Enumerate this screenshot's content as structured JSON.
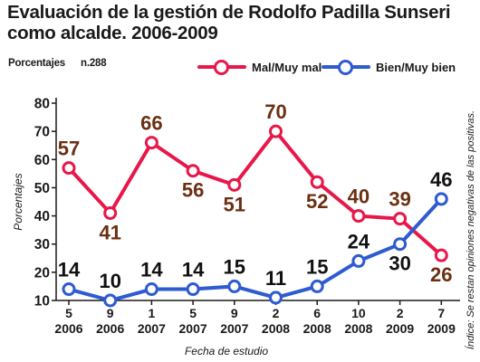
{
  "title_line1": "Evaluación de la gestión de Rodolfo Padilla Sunseri",
  "title_line2": "como alcalde. 2006-2009",
  "subtitle_label": "Porcentajes",
  "sample": "n.288",
  "note": "Índice: Se restan opiniones negativas de las positivas.",
  "colors": {
    "mal": "#e8174a",
    "bien": "#2f5bd0",
    "mal_label": "#6b2f12",
    "bien_label": "#111111"
  },
  "chart_data": {
    "type": "line",
    "categories": [
      [
        "5",
        "2006"
      ],
      [
        "9",
        "2006"
      ],
      [
        "1",
        "2007"
      ],
      [
        "5",
        "2007"
      ],
      [
        "9",
        "2007"
      ],
      [
        "2",
        "2008"
      ],
      [
        "6",
        "2008"
      ],
      [
        "10",
        "2008"
      ],
      [
        "2",
        "2009"
      ],
      [
        "7",
        "2009"
      ]
    ],
    "series": [
      {
        "name": "Mal/Muy mal",
        "values": [
          57,
          41,
          66,
          56,
          51,
          70,
          52,
          40,
          39,
          26
        ],
        "label_pos": [
          "above",
          "below",
          "above",
          "below",
          "below",
          "above",
          "below",
          "above",
          "above",
          "below"
        ]
      },
      {
        "name": "Bien/Muy bien",
        "values": [
          14,
          10,
          14,
          14,
          15,
          11,
          15,
          24,
          30,
          46
        ],
        "label_pos": [
          "above",
          "above",
          "above",
          "above",
          "above",
          "above",
          "above",
          "above",
          "below",
          "above"
        ]
      }
    ],
    "xlabel": "Fecha de estudio",
    "ylabel": "Porcentajes",
    "ylim": [
      10,
      80
    ],
    "yticks": [
      10,
      20,
      30,
      40,
      50,
      60,
      70,
      80
    ],
    "grid": false,
    "legend": "top"
  }
}
